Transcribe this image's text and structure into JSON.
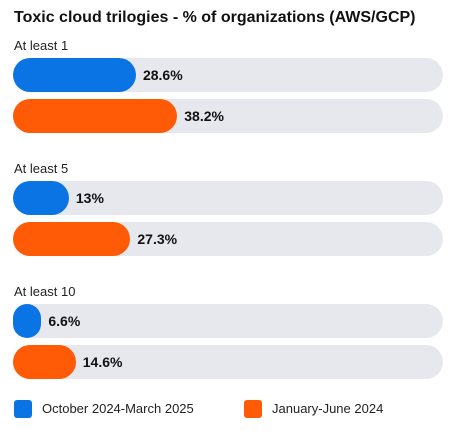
{
  "colors": {
    "series_a": "#0a74e4",
    "series_b": "#ff5a05",
    "track": "#e6e8ee"
  },
  "chart_data": {
    "type": "bar",
    "orientation": "horizontal",
    "title": "Toxic cloud trilogies - % of organizations (AWS/GCP)",
    "categories": [
      "At least 1",
      "At least 5",
      "At least 10"
    ],
    "value_labels": [
      [
        "28.6%",
        "38.2%"
      ],
      [
        "13%",
        "27.3%"
      ],
      [
        "6.6%",
        "14.6%"
      ]
    ],
    "series": [
      {
        "name": "October 2024-March 2025",
        "values": [
          28.6,
          13,
          6.6
        ]
      },
      {
        "name": "January-June 2024",
        "values": [
          38.2,
          27.3,
          14.6
        ]
      }
    ],
    "xlim": [
      0,
      100
    ],
    "legend_position": "bottom"
  }
}
